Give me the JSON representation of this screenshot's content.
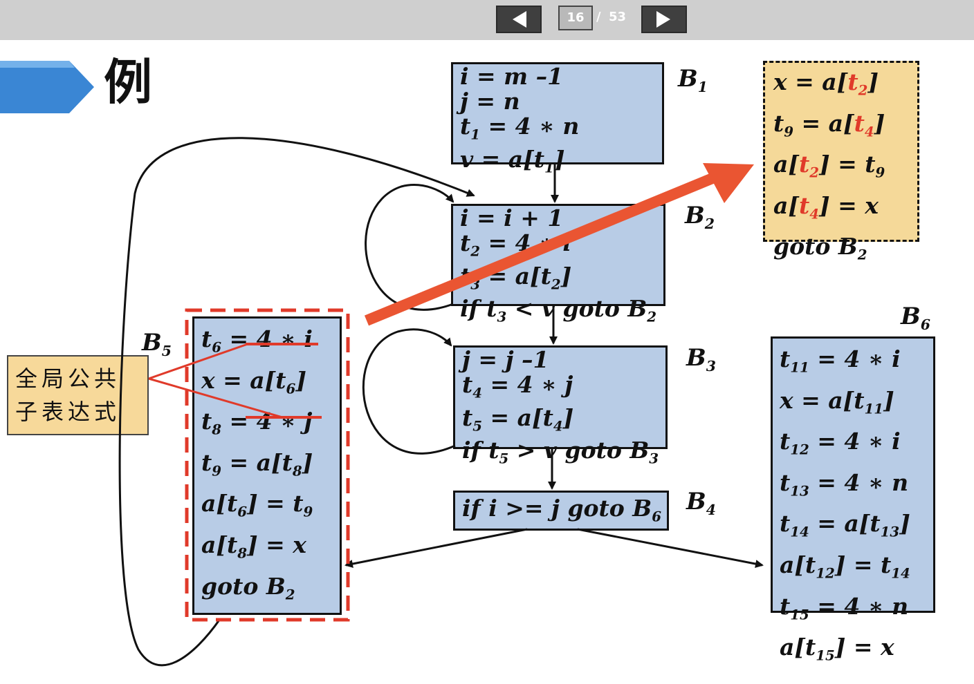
{
  "viewer": {
    "current_page": "16",
    "separator": "/",
    "total_pages": "53"
  },
  "slide": {
    "title": "例",
    "note": {
      "line1": "全局公共",
      "line2": "子表达式"
    },
    "blocks": {
      "B1": {
        "label": "B",
        "sub": "1",
        "lines": [
          [
            "i = m –1"
          ],
          [
            "j = n"
          ],
          [
            "t",
            "1",
            " = 4 ∗ n"
          ],
          [
            "v = a[t",
            "1",
            "]"
          ]
        ]
      },
      "B2": {
        "label": "B",
        "sub": "2",
        "lines": [
          [
            "i = i + 1"
          ],
          [
            "t",
            "2",
            " = 4 ∗ i"
          ],
          [
            "t",
            "3",
            " = a[t",
            "2",
            "]"
          ],
          [
            "if t",
            "3",
            " < v goto B",
            "2"
          ]
        ]
      },
      "B3": {
        "label": "B",
        "sub": "3",
        "lines": [
          [
            "j = j –1"
          ],
          [
            "t",
            "4",
            " = 4 ∗ j"
          ],
          [
            "t",
            "5",
            " = a[t",
            "4",
            "]"
          ],
          [
            "if t",
            "5",
            " > v goto B",
            "3"
          ]
        ]
      },
      "B4": {
        "label": "B",
        "sub": "4",
        "lines": [
          [
            "if i >= j goto B",
            "6"
          ]
        ]
      },
      "B5": {
        "label": "B",
        "sub": "5",
        "lines": [
          [
            "t",
            "6",
            " = 4 ∗ i"
          ],
          [
            "x = a[t",
            "6",
            "]"
          ],
          [
            "t",
            "8",
            " = 4 ∗ j"
          ],
          [
            "t",
            "9",
            " = a[t",
            "8",
            "]"
          ],
          [
            "a[t",
            "6",
            "] = t",
            "9"
          ],
          [
            "a[t",
            "8",
            "] = x"
          ],
          [
            "goto B",
            "2"
          ]
        ]
      },
      "B6": {
        "label": "B",
        "sub": "6",
        "lines": [
          [
            "t",
            "11",
            " = 4 ∗ i"
          ],
          [
            "x = a[t",
            "11",
            "]"
          ],
          [
            "t",
            "12",
            " = 4 ∗ i"
          ],
          [
            "t",
            "13",
            " = 4 ∗ n"
          ],
          [
            "t",
            "14",
            " = a[t",
            "13",
            "]"
          ],
          [
            "a[t",
            "12",
            "] = t",
            "14"
          ],
          [
            "t",
            "15",
            " = 4 ∗ n"
          ],
          [
            "a[t",
            "15",
            "] = x"
          ]
        ]
      },
      "optimized": {
        "lines": [
          {
            "parts": [
              "x = a[",
              "t",
              "2",
              "]"
            ],
            "red": [
              1,
              2
            ]
          },
          {
            "parts": [
              "t",
              "9",
              " = a[",
              "t",
              "4",
              "]"
            ],
            "red": [
              3,
              4
            ]
          },
          {
            "parts": [
              "a[",
              "t",
              "2",
              "] = t",
              "9"
            ],
            "red": [
              1,
              2
            ]
          },
          {
            "parts": [
              "a[",
              "t",
              "4",
              "] = x"
            ],
            "red": [
              1,
              2
            ]
          },
          {
            "parts": [
              "goto B",
              "2"
            ],
            "red": []
          }
        ]
      }
    },
    "colors": {
      "block_fill": "#b8cce6",
      "note_fill": "#f7d99a",
      "highlight_red": "#e03a2a",
      "arrow_orange": "#ea5532",
      "title_arrow_blue": "#3a86d4"
    }
  }
}
